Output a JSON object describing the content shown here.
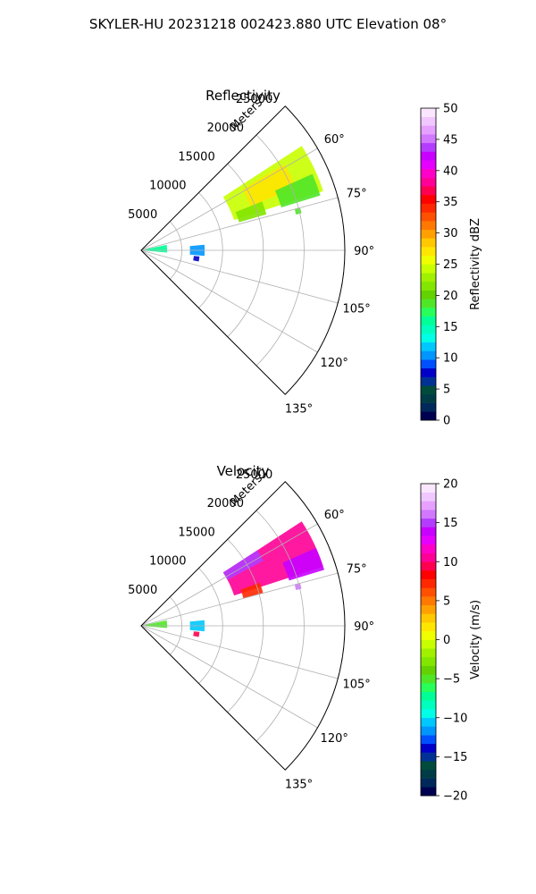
{
  "figure": {
    "title": "SKYLER-HU  20231218  002423.880 UTC Elevation 08°"
  },
  "chart_data": [
    {
      "type": "heatmap",
      "title": "Reflectivity",
      "radial_label": "Meters",
      "r_ticks": [
        5000,
        10000,
        15000,
        20000,
        25000
      ],
      "r_tick_labels": [
        "5000",
        "10000",
        "15000",
        "20000",
        "25000"
      ],
      "theta_ticks": [
        60,
        75,
        90,
        105,
        120,
        135
      ],
      "theta_tick_labels": [
        "60°",
        "75°",
        "90°",
        "105°",
        "120°",
        "135°"
      ],
      "theta_range": [
        45,
        135
      ],
      "r_range": [
        0,
        25000
      ],
      "grid": true,
      "colorbar": {
        "label": "Reflectivity dBZ",
        "range": [
          0,
          50
        ],
        "ticks": [
          0,
          5,
          10,
          15,
          20,
          25,
          30,
          35,
          40,
          45,
          50
        ],
        "tick_labels": [
          "0",
          "5",
          "10",
          "15",
          "20",
          "25",
          "30",
          "35",
          "40",
          "45",
          "50"
        ],
        "colors": [
          "#000050",
          "#00285a",
          "#003c46",
          "#004b3c",
          "#003296",
          "#0000c8",
          "#0050ff",
          "#0096ff",
          "#00c8ff",
          "#00ffe6",
          "#00ffbe",
          "#00ff96",
          "#28ff5a",
          "#50e628",
          "#64d200",
          "#82e600",
          "#a0f000",
          "#c8ff00",
          "#f0ff00",
          "#ffe600",
          "#ffc800",
          "#ffa000",
          "#ff7800",
          "#ff5000",
          "#ff2800",
          "#ff0000",
          "#ff0050",
          "#ff0096",
          "#ff00c8",
          "#e600ff",
          "#c800ff",
          "#b43cff",
          "#d278ff",
          "#e6a0ff",
          "#f0c8ff",
          "#fae6ff"
        ]
      },
      "regions": [
        {
          "r": [
            12000,
            23500
          ],
          "theta": [
            57,
            72
          ],
          "value": 24
        },
        {
          "r": [
            14500,
            20500
          ],
          "theta": [
            59,
            68
          ],
          "value": 27
        },
        {
          "r": [
            18000,
            23000
          ],
          "theta": [
            66,
            73
          ],
          "value": 19
        },
        {
          "r": [
            12500,
            16000
          ],
          "theta": [
            68,
            74
          ],
          "value": 22
        },
        {
          "r": [
            500,
            3200
          ],
          "theta": [
            78,
            95
          ],
          "value": 16
        },
        {
          "r": [
            6000,
            7800
          ],
          "theta": [
            85,
            95
          ],
          "value": 11
        },
        {
          "r": [
            6500,
            7200
          ],
          "theta": [
            96,
            101
          ],
          "value": 7
        },
        {
          "r": [
            19500,
            20200
          ],
          "theta": [
            75,
            77
          ],
          "value": 19
        }
      ]
    },
    {
      "type": "heatmap",
      "title": "Velocity",
      "radial_label": "Meters",
      "r_ticks": [
        5000,
        10000,
        15000,
        20000,
        25000
      ],
      "r_tick_labels": [
        "5000",
        "10000",
        "15000",
        "20000",
        "25000"
      ],
      "theta_ticks": [
        60,
        75,
        90,
        105,
        120,
        135
      ],
      "theta_tick_labels": [
        "60°",
        "75°",
        "90°",
        "105°",
        "120°",
        "135°"
      ],
      "theta_range": [
        45,
        135
      ],
      "r_range": [
        0,
        25000
      ],
      "grid": true,
      "colorbar": {
        "label": "Velocity (m/s)",
        "range": [
          -20,
          20
        ],
        "ticks": [
          -20,
          -15,
          -10,
          -5,
          0,
          5,
          10,
          15,
          20
        ],
        "tick_labels": [
          "−20",
          "−15",
          "−10",
          "−5",
          "0",
          "5",
          "10",
          "15",
          "20"
        ],
        "colors": [
          "#000050",
          "#00285a",
          "#003c46",
          "#004b3c",
          "#003296",
          "#0000c8",
          "#0050ff",
          "#0096ff",
          "#00c8ff",
          "#00ffe6",
          "#00ffbe",
          "#00ff96",
          "#28ff5a",
          "#50e628",
          "#64d200",
          "#82e600",
          "#a0f000",
          "#c8ff00",
          "#f0ff00",
          "#ffe600",
          "#ffc800",
          "#ffa000",
          "#ff7800",
          "#ff5000",
          "#ff2800",
          "#ff0000",
          "#ff0050",
          "#ff0096",
          "#ff00c8",
          "#e600ff",
          "#c800ff",
          "#b43cff",
          "#d278ff",
          "#e6a0ff",
          "#f0c8ff",
          "#fae6ff"
        ]
      },
      "regions": [
        {
          "r": [
            12000,
            23500
          ],
          "theta": [
            57,
            72
          ],
          "value": 10
        },
        {
          "r": [
            12000,
            17000
          ],
          "theta": [
            57,
            62
          ],
          "value": 15
        },
        {
          "r": [
            19000,
            23500
          ],
          "theta": [
            66,
            73
          ],
          "value": 14
        },
        {
          "r": [
            13000,
            15500
          ],
          "theta": [
            70,
            75
          ],
          "value": 7
        },
        {
          "r": [
            500,
            3200
          ],
          "theta": [
            78,
            95
          ],
          "value": -5
        },
        {
          "r": [
            6000,
            7800
          ],
          "theta": [
            85,
            95
          ],
          "value": -11
        },
        {
          "r": [
            6500,
            7200
          ],
          "theta": [
            96,
            101
          ],
          "value": 9
        },
        {
          "r": [
            19500,
            20200
          ],
          "theta": [
            75,
            77
          ],
          "value": 16
        }
      ]
    }
  ]
}
